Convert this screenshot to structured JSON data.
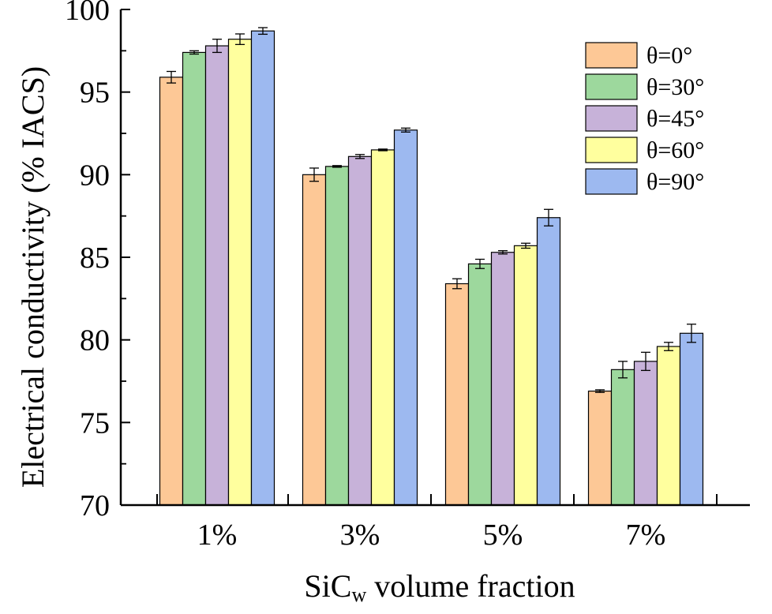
{
  "chart_data": {
    "type": "bar",
    "title": "",
    "xlabel": "SiCw volume fraction",
    "xlabel_main": "SiC",
    "xlabel_sub": "w",
    "xlabel_rest": " volume fraction",
    "ylabel": "Electrical conductivity (% IACS)",
    "ylim": [
      70,
      100
    ],
    "yticks": [
      70,
      75,
      80,
      85,
      90,
      95,
      100
    ],
    "categories": [
      "1%",
      "3%",
      "5%",
      "7%"
    ],
    "legend_position": "top-right",
    "series": [
      {
        "name": "θ=0°",
        "color": "#FDC896",
        "values": [
          95.9,
          90.0,
          83.4,
          76.9
        ],
        "errors": [
          0.35,
          0.4,
          0.3,
          0.08
        ]
      },
      {
        "name": "θ=30°",
        "color": "#9DD89D",
        "values": [
          97.4,
          90.5,
          84.6,
          78.2
        ],
        "errors": [
          0.1,
          0.05,
          0.28,
          0.5
        ]
      },
      {
        "name": "θ=45°",
        "color": "#C7B2D9",
        "values": [
          97.8,
          91.1,
          85.3,
          78.7
        ],
        "errors": [
          0.4,
          0.12,
          0.1,
          0.55
        ]
      },
      {
        "name": "θ=60°",
        "color": "#FFFF9E",
        "values": [
          98.2,
          91.5,
          85.7,
          79.6
        ],
        "errors": [
          0.32,
          0.05,
          0.15,
          0.25
        ]
      },
      {
        "name": "θ=90°",
        "color": "#9DB9F0",
        "values": [
          98.7,
          92.7,
          87.4,
          80.4
        ],
        "errors": [
          0.2,
          0.12,
          0.5,
          0.55
        ]
      }
    ]
  }
}
